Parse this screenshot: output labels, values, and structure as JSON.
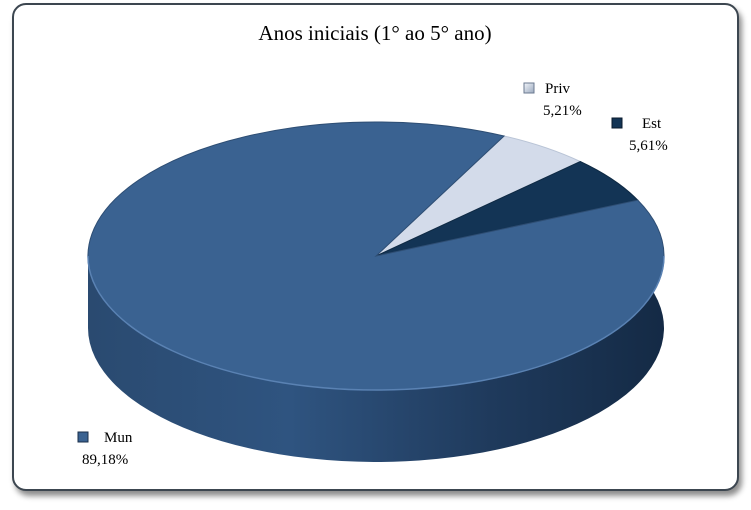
{
  "chart_data": {
    "type": "pie",
    "title": "Anos iniciais (1° ao 5° ano)",
    "slices": [
      {
        "name": "Mun",
        "value": 89.18,
        "label": "89,18%",
        "color": "#3a6291"
      },
      {
        "name": "Priv",
        "value": 5.21,
        "label": "5,21%",
        "color": "#d3dbea"
      },
      {
        "name": "Est",
        "value": 5.61,
        "label": "5,61%",
        "color": "#133455"
      }
    ],
    "style": "3d",
    "legend": "inline"
  }
}
